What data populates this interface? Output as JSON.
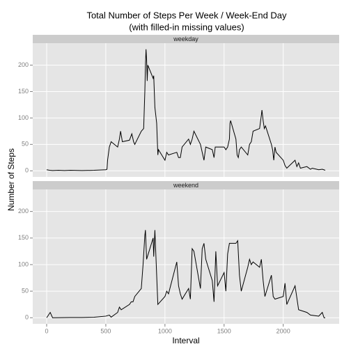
{
  "title": "Total Number of Steps Per Week / Week-End Day",
  "subtitle": "(with filled-in missing values)",
  "x_label": "Interval",
  "y_label": "Number of Steps",
  "chart_data": [
    {
      "type": "line",
      "panel": "weekday",
      "color": "#000000",
      "grid": true,
      "xlim": [
        -117.75,
        2472.75
      ],
      "ylim": [
        -11.5,
        241.5
      ],
      "xticks": [
        0,
        500,
        1000,
        1500,
        2000
      ],
      "yticks": [
        0,
        50,
        100,
        150,
        200
      ],
      "x": [
        0,
        25,
        50,
        100,
        150,
        200,
        300,
        400,
        500,
        510,
        515,
        530,
        545,
        600,
        615,
        625,
        640,
        700,
        720,
        735,
        745,
        800,
        820,
        830,
        835,
        840,
        845,
        850,
        855,
        900,
        905,
        915,
        930,
        940,
        945,
        1000,
        1015,
        1030,
        1100,
        1115,
        1130,
        1145,
        1200,
        1215,
        1230,
        1245,
        1300,
        1330,
        1345,
        1400,
        1415,
        1425,
        1500,
        1515,
        1530,
        1545,
        1550,
        1555,
        1600,
        1610,
        1620,
        1630,
        1645,
        1700,
        1715,
        1730,
        1745,
        1800,
        1815,
        1820,
        1830,
        1840,
        1850,
        1900,
        1910,
        1920,
        1930,
        1940,
        2000,
        2015,
        2030,
        2100,
        2115,
        2130,
        2145,
        2200,
        2230,
        2245,
        2300,
        2330,
        2355
      ],
      "values": [
        2,
        1,
        0.5,
        1,
        0.5,
        1,
        0.5,
        1,
        2,
        3,
        20,
        45,
        55,
        45,
        60,
        75,
        55,
        58,
        70,
        55,
        50,
        75,
        80,
        150,
        200,
        230,
        210,
        170,
        200,
        175,
        180,
        120,
        90,
        30,
        40,
        20,
        35,
        30,
        35,
        25,
        25,
        45,
        60,
        50,
        60,
        75,
        50,
        20,
        45,
        40,
        25,
        45,
        45,
        40,
        45,
        60,
        90,
        95,
        60,
        30,
        25,
        40,
        45,
        30,
        50,
        55,
        75,
        80,
        105,
        115,
        95,
        80,
        85,
        50,
        40,
        20,
        45,
        35,
        20,
        10,
        5,
        20,
        8,
        15,
        5,
        8,
        3,
        5,
        2,
        3,
        1
      ]
    },
    {
      "type": "line",
      "panel": "weekend",
      "color": "#000000",
      "grid": true,
      "xlim": [
        -117.75,
        2472.75
      ],
      "ylim": [
        -11.5,
        241.5
      ],
      "xticks": [
        0,
        500,
        1000,
        1500,
        2000
      ],
      "yticks": [
        0,
        50,
        100,
        150,
        200
      ],
      "x": [
        0,
        30,
        50,
        200,
        300,
        400,
        500,
        530,
        545,
        600,
        615,
        630,
        700,
        715,
        730,
        745,
        800,
        815,
        830,
        835,
        845,
        900,
        905,
        915,
        930,
        940,
        1000,
        1015,
        1030,
        1100,
        1115,
        1130,
        1145,
        1200,
        1215,
        1230,
        1245,
        1300,
        1315,
        1330,
        1345,
        1400,
        1415,
        1430,
        1445,
        1500,
        1515,
        1530,
        1545,
        1600,
        1615,
        1630,
        1645,
        1700,
        1715,
        1730,
        1745,
        1800,
        1815,
        1830,
        1845,
        1900,
        1915,
        1930,
        2000,
        2015,
        2030,
        2100,
        2130,
        2200,
        2230,
        2300,
        2330,
        2345,
        2355
      ],
      "values": [
        0,
        10,
        0,
        0.5,
        0.5,
        1,
        3,
        5,
        1,
        10,
        20,
        15,
        25,
        30,
        30,
        40,
        55,
        100,
        155,
        165,
        110,
        150,
        115,
        165,
        80,
        25,
        40,
        50,
        45,
        105,
        60,
        45,
        35,
        55,
        35,
        130,
        125,
        55,
        130,
        140,
        110,
        70,
        30,
        125,
        60,
        85,
        50,
        120,
        140,
        140,
        145,
        80,
        50,
        95,
        110,
        100,
        105,
        95,
        110,
        70,
        40,
        80,
        40,
        35,
        40,
        65,
        25,
        60,
        15,
        10,
        5,
        3,
        10,
        0,
        0
      ]
    }
  ]
}
